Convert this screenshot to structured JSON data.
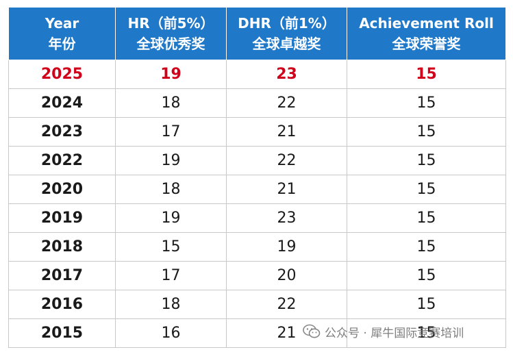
{
  "table": {
    "headers": [
      {
        "en": "Year",
        "zh": "年份"
      },
      {
        "en": "HR（前5%）",
        "zh": "全球优秀奖"
      },
      {
        "en": "DHR（前1%）",
        "zh": "全球卓越奖"
      },
      {
        "en": "Achievement Roll",
        "zh": "全球荣誉奖"
      }
    ],
    "rows": [
      {
        "year": "2025",
        "hr": "19",
        "dhr": "23",
        "roll": "15",
        "highlight": true
      },
      {
        "year": "2024",
        "hr": "18",
        "dhr": "22",
        "roll": "15"
      },
      {
        "year": "2023",
        "hr": "17",
        "dhr": "21",
        "roll": "15"
      },
      {
        "year": "2022",
        "hr": "19",
        "dhr": "22",
        "roll": "15"
      },
      {
        "year": "2020",
        "hr": "18",
        "dhr": "21",
        "roll": "15"
      },
      {
        "year": "2019",
        "hr": "19",
        "dhr": "23",
        "roll": "15"
      },
      {
        "year": "2018",
        "hr": "15",
        "dhr": "19",
        "roll": "15"
      },
      {
        "year": "2017",
        "hr": "17",
        "dhr": "20",
        "roll": "15"
      },
      {
        "year": "2016",
        "hr": "18",
        "dhr": "22",
        "roll": "15"
      },
      {
        "year": "2015",
        "hr": "16",
        "dhr": "21",
        "roll": "15"
      }
    ]
  },
  "watermark": {
    "icon": "wechat-icon",
    "text": "公众号 · 犀牛国际竞赛培训"
  },
  "colors": {
    "header_bg": "#1f78c8",
    "highlight_text": "#d0021b"
  }
}
